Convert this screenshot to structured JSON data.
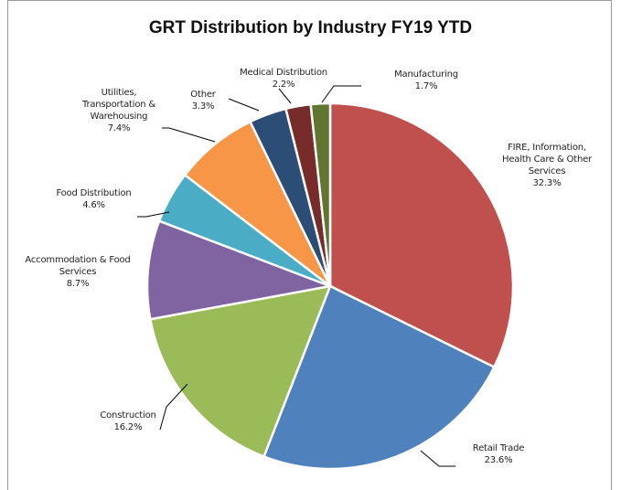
{
  "chart_data": {
    "type": "pie",
    "title": "GRT Distribution by Industry FY19 YTD",
    "categories": [
      "FIRE, Information, Health Care & Other Services",
      "Retail Trade",
      "Construction",
      "Accommodation & Food Services",
      "Food Distribution",
      "Utilities, Transportation & Warehousing",
      "Other",
      "Medical Distribution",
      "Manufacturing"
    ],
    "values": [
      32.3,
      23.6,
      16.2,
      8.7,
      4.6,
      7.4,
      3.3,
      2.2,
      1.7
    ],
    "value_labels": [
      "32.3%",
      "23.6%",
      "16.2%",
      "8.7%",
      "4.6%",
      "7.4%",
      "3.3%",
      "2.2%",
      "1.7%"
    ],
    "colors": [
      "#c0504d",
      "#4f81bd",
      "#9bbb59",
      "#8064a2",
      "#4bacc6",
      "#f79646",
      "#2c4d75",
      "#772c2a",
      "#5f7530"
    ]
  }
}
